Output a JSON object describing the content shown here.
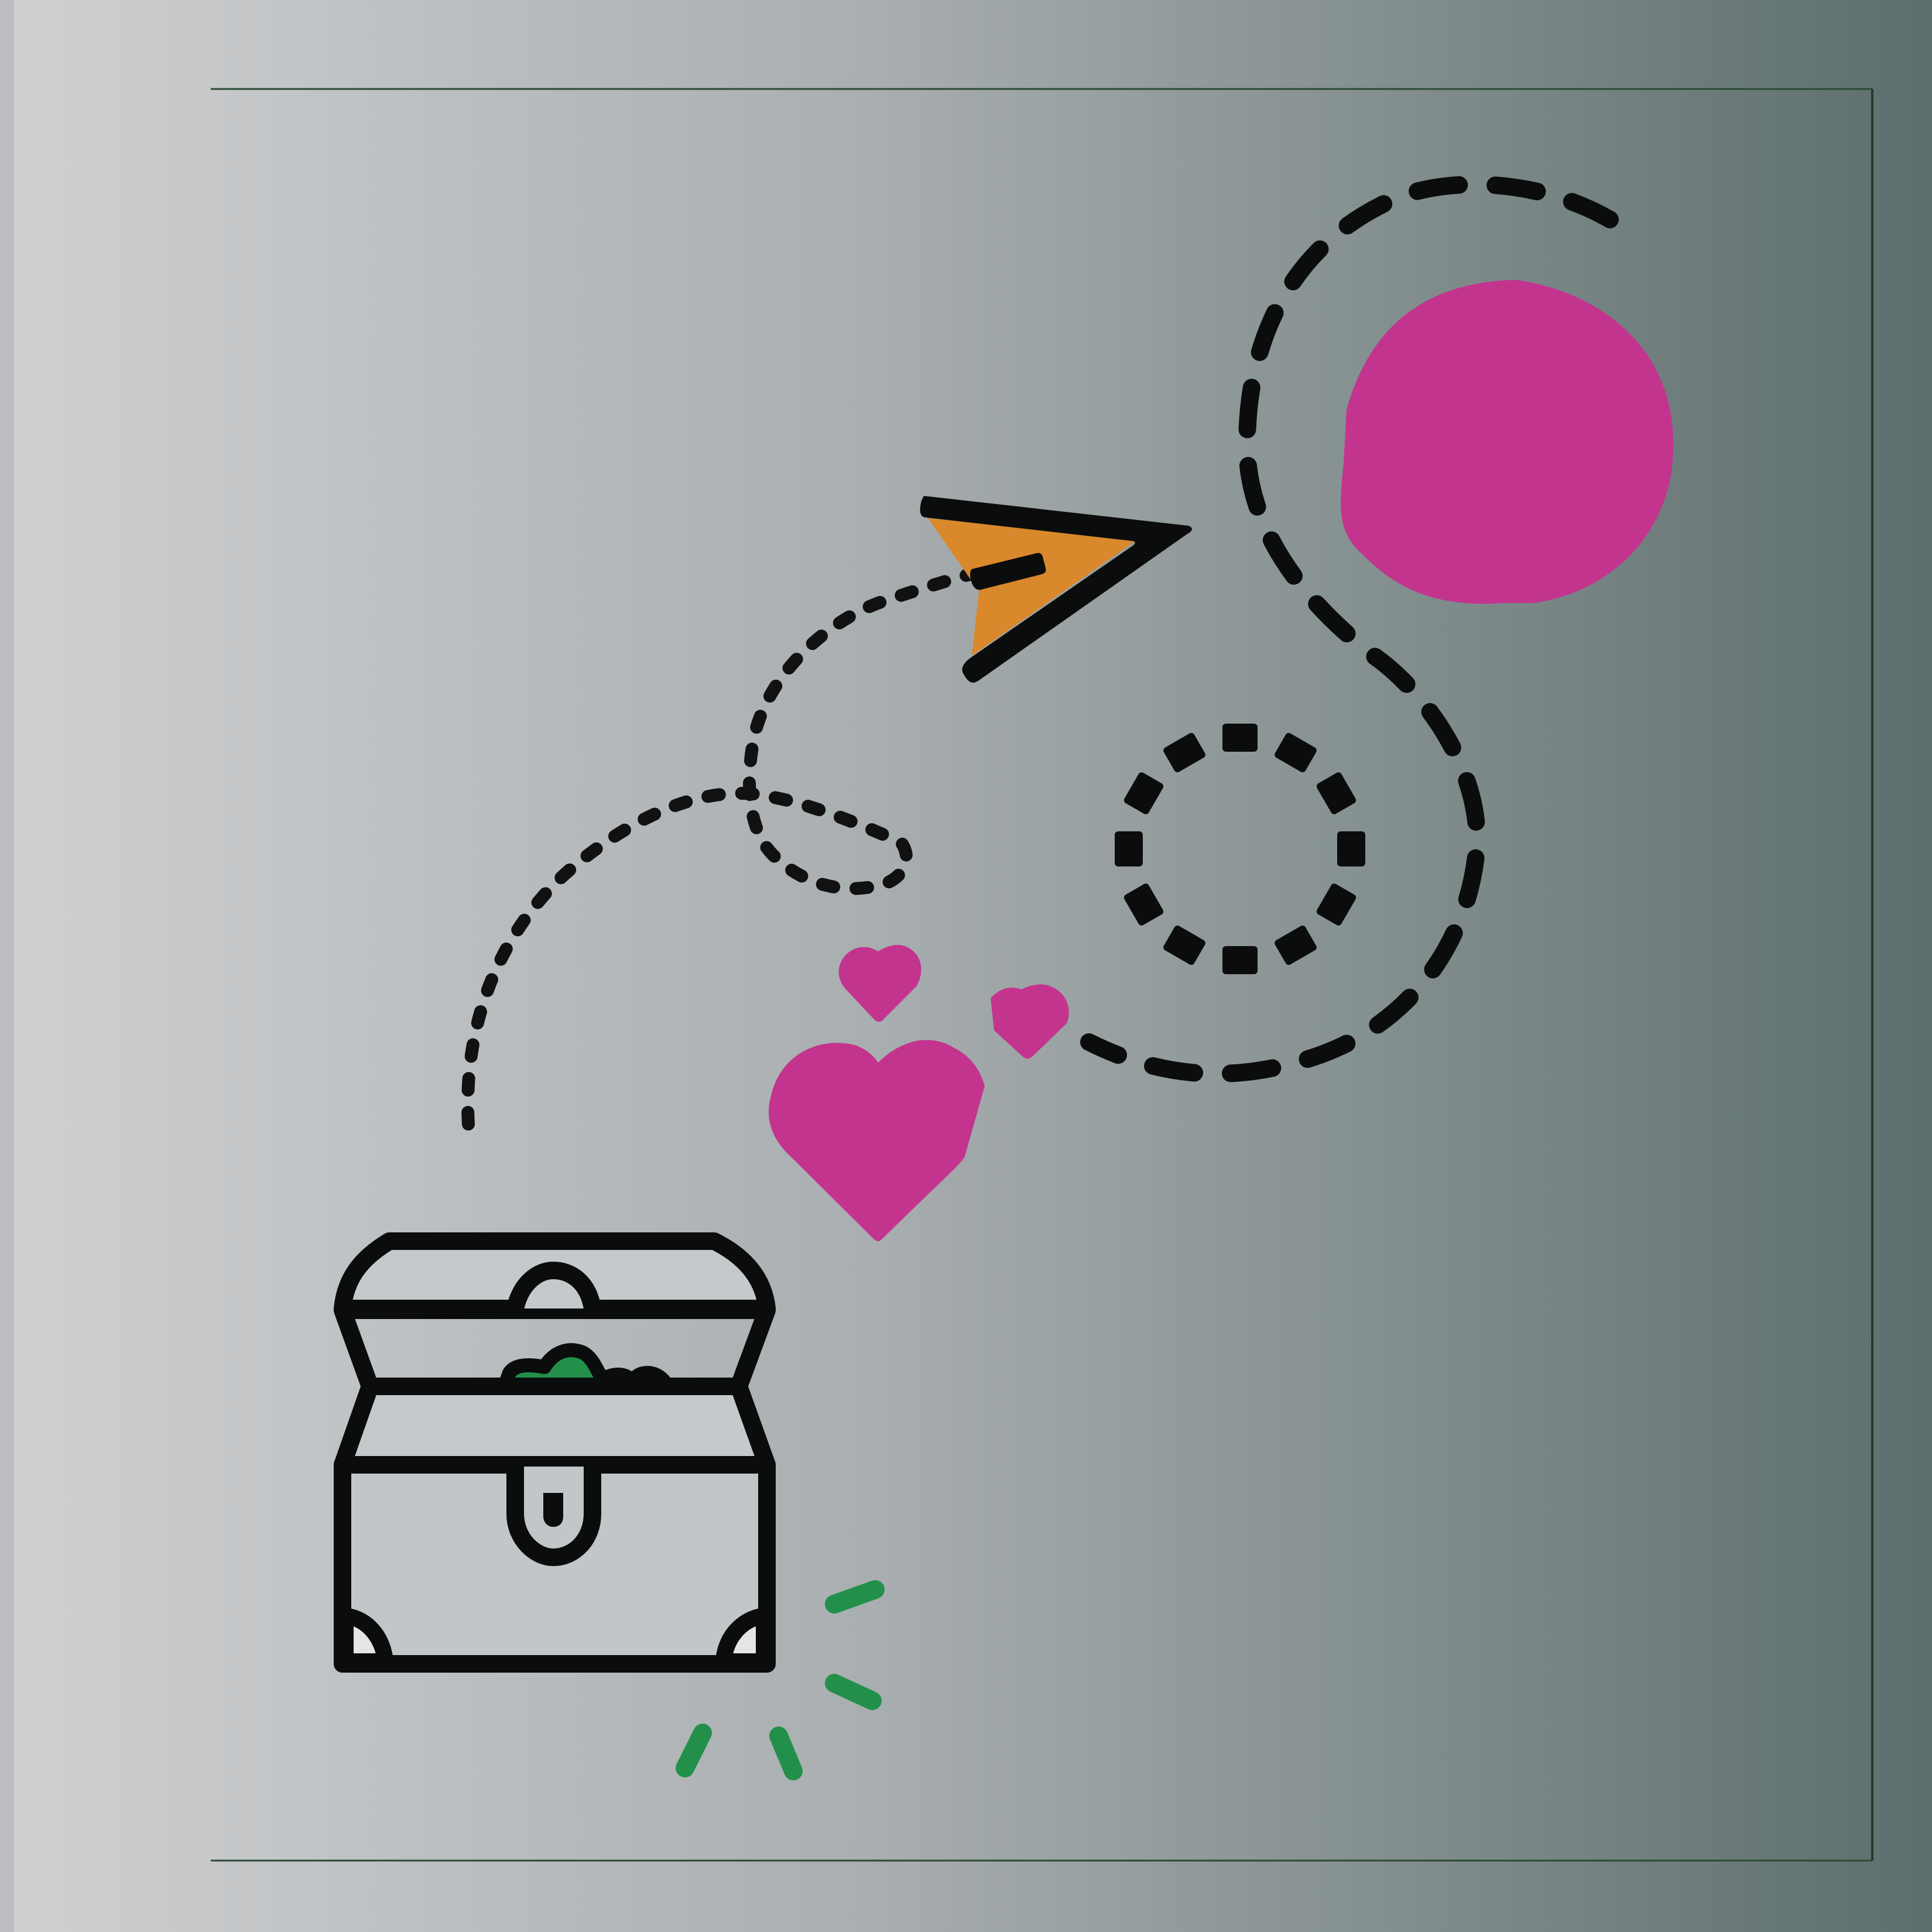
{
  "colors": {
    "gradient_left": "#cfd0d2",
    "gradient_mid": "#a9aeb0",
    "gradient_right": "#5c6e6c",
    "frame_line": "#1f3d2a",
    "outline_black": "#0b0c0c",
    "sun_magenta": "#c3348f",
    "heart_magenta": "#c3348f",
    "plane_orange": "#d9882c",
    "treasure_green": "#22904a",
    "sparkle_green": "#22904a",
    "chest_fill": "#c3c6c8"
  },
  "icons": {
    "treasure_chest": "treasure-chest-icon",
    "paper_plane": "paper-plane-icon",
    "sun": "sun-circle-icon",
    "hearts": "heart-icon",
    "ring": "dashed-ring-icon",
    "sparkles": "sparkle-icon"
  }
}
